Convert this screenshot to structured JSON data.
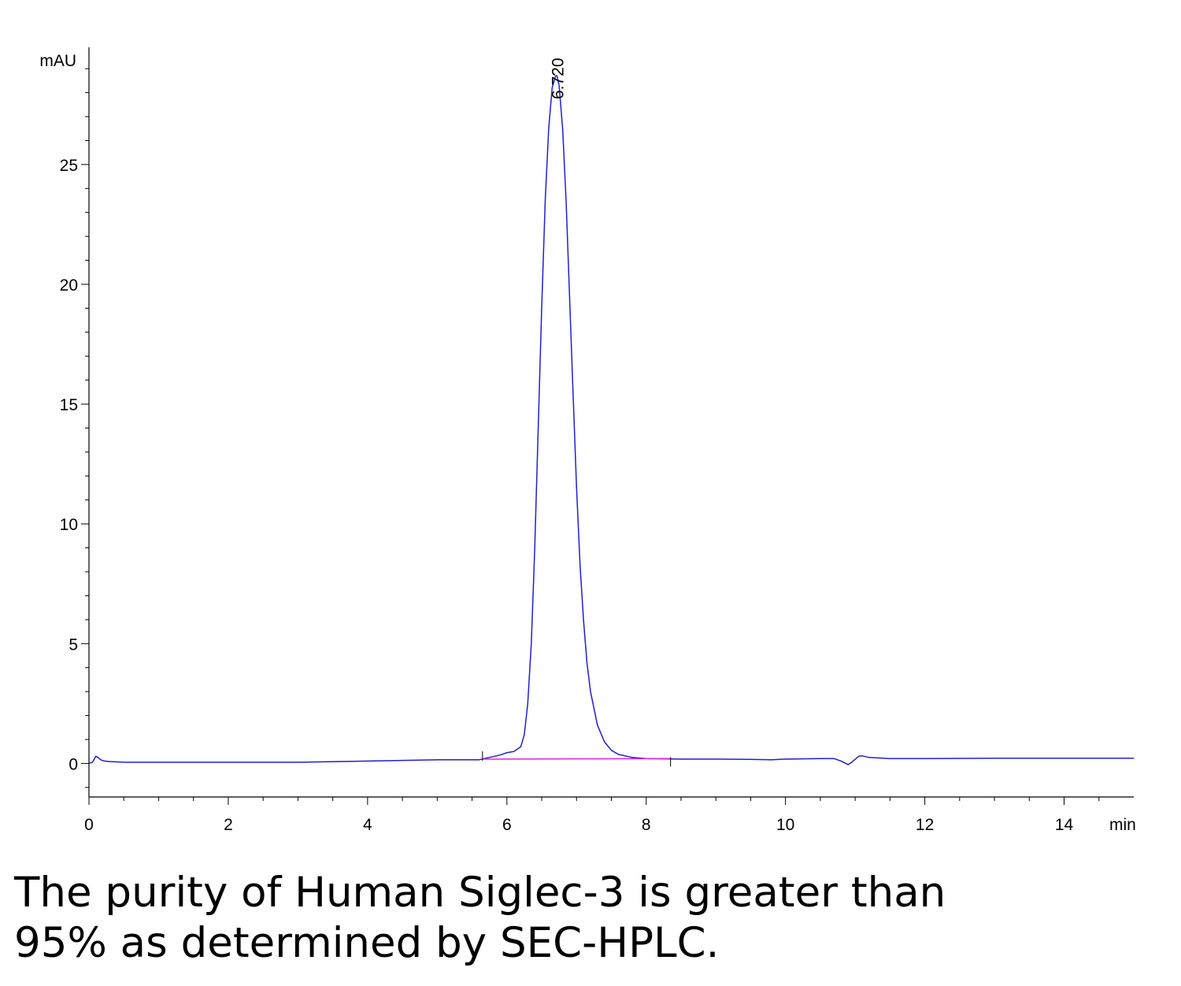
{
  "chart_data": {
    "type": "line",
    "ylabel": "mAU",
    "xlabel": "min",
    "xlim": [
      0,
      15
    ],
    "ylim": [
      -1.4,
      29.5
    ],
    "x_ticks": [
      0,
      2,
      4,
      6,
      8,
      10,
      12,
      14
    ],
    "y_ticks": [
      0,
      5,
      10,
      15,
      20,
      25
    ],
    "grid": false,
    "peak_label": "6.720",
    "series": [
      {
        "color": "#1f1fd6",
        "x": [
          0,
          0.05,
          0.1,
          0.13,
          0.17,
          0.22,
          0.3,
          0.5,
          1,
          2,
          3,
          4,
          5,
          5.6,
          5.7,
          5.9,
          6,
          6.1,
          6.2,
          6.25,
          6.3,
          6.35,
          6.4,
          6.45,
          6.5,
          6.55,
          6.6,
          6.65,
          6.7,
          6.72,
          6.75,
          6.8,
          6.85,
          6.9,
          6.95,
          7,
          7.05,
          7.1,
          7.15,
          7.2,
          7.3,
          7.4,
          7.5,
          7.6,
          7.8,
          8,
          8.5,
          9,
          9.5,
          9.8,
          10,
          10.5,
          10.7,
          10.8,
          10.9,
          10.95,
          11.05,
          11.1,
          11.2,
          11.5,
          12,
          13,
          14,
          15
        ],
        "y": [
          0,
          0.05,
          0.3,
          0.25,
          0.15,
          0.1,
          0.08,
          0.05,
          0.05,
          0.05,
          0.05,
          0.1,
          0.15,
          0.15,
          0.22,
          0.35,
          0.45,
          0.5,
          0.7,
          1.2,
          2.5,
          5,
          9,
          14,
          19,
          23.5,
          26.5,
          28.2,
          28.7,
          28.7,
          28.3,
          26.5,
          23.5,
          19.5,
          15.5,
          11.5,
          8.3,
          6,
          4.2,
          3,
          1.6,
          0.9,
          0.55,
          0.38,
          0.25,
          0.2,
          0.18,
          0.18,
          0.17,
          0.15,
          0.18,
          0.2,
          0.2,
          0.1,
          -0.05,
          0.05,
          0.3,
          0.32,
          0.25,
          0.2,
          0.2,
          0.22,
          0.22,
          0.22
        ]
      },
      {
        "color": "#e020e0",
        "x": [
          5.65,
          8.35
        ],
        "y": [
          0.18,
          0.2
        ]
      }
    ]
  },
  "caption": {
    "line1": "The purity of Human Siglec-3 is greater than",
    "line2": "95% as determined by SEC-HPLC."
  }
}
